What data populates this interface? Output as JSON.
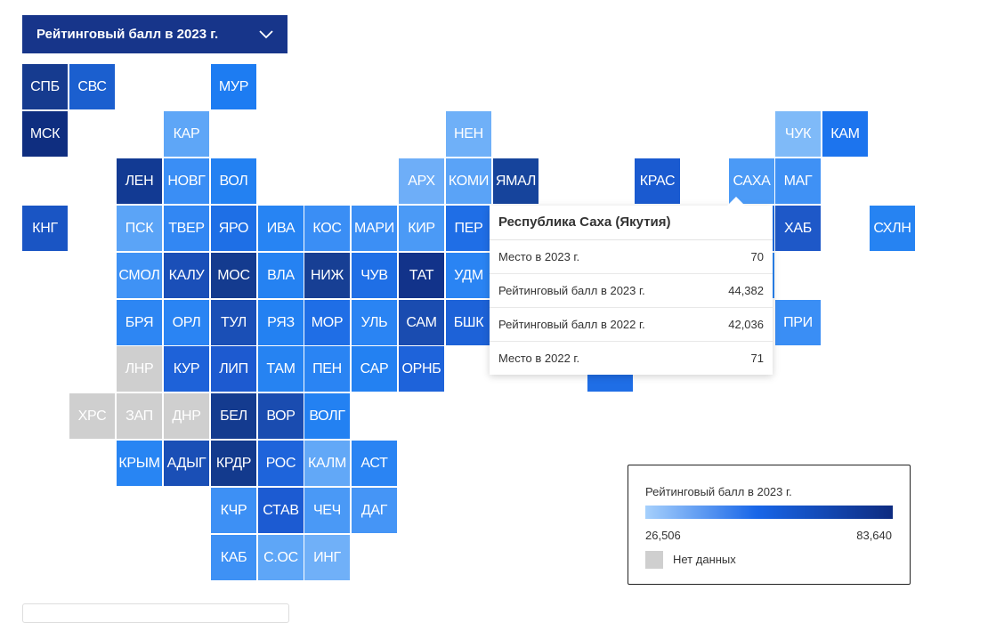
{
  "filter": {
    "selected": "Рейтинговый балл в 2023 г."
  },
  "colors": {
    "nodata": "#cfcfcf",
    "scale_low": "#a6d0fc",
    "scale_high": "#0e2b80"
  },
  "tiles": [
    {
      "code": "СПБ",
      "color": "#163b8f"
    },
    {
      "code": "СВС",
      "color": "#1b5fcf"
    },
    {
      "code": "МУР",
      "color": "#1d7cf2"
    },
    {
      "code": "МСК",
      "color": "#0f2e80"
    },
    {
      "code": "КАР",
      "color": "#5ea6f7"
    },
    {
      "code": "НЕН",
      "color": "#6fb0f8"
    },
    {
      "code": "ЧУК",
      "color": "#7fbaf8"
    },
    {
      "code": "КАМ",
      "color": "#1c74ee"
    },
    {
      "code": "ЛЕН",
      "color": "#123a93"
    },
    {
      "code": "НОВГ",
      "color": "#3a8ef5"
    },
    {
      "code": "ВОЛ",
      "color": "#2381f2"
    },
    {
      "code": "АРХ",
      "color": "#6eaef8"
    },
    {
      "code": "КОМИ",
      "color": "#5aa3f7"
    },
    {
      "code": "ЯМАЛ",
      "color": "#16449c"
    },
    {
      "code": "КРАС",
      "color": "#1a5ad0"
    },
    {
      "code": "САХА",
      "color": "#4b9af6"
    },
    {
      "code": "МАГ",
      "color": "#3f91f5"
    },
    {
      "code": "КНГ",
      "color": "#1a55c4"
    },
    {
      "code": "ПСК",
      "color": "#5ba4f7"
    },
    {
      "code": "ТВЕР",
      "color": "#3287f3"
    },
    {
      "code": "ЯРО",
      "color": "#1e6fe6"
    },
    {
      "code": "ИВА",
      "color": "#2784f3"
    },
    {
      "code": "КОС",
      "color": "#3a8ef5"
    },
    {
      "code": "МАРИ",
      "color": "#3c8ff5"
    },
    {
      "code": "КИР",
      "color": "#4b9af6"
    },
    {
      "code": "ПЕР",
      "color": "#1f6ee6"
    },
    {
      "code": "ХАБ",
      "color": "#1e58c8"
    },
    {
      "code": "СХЛН",
      "color": "#2683f2"
    },
    {
      "code": "СМОЛ",
      "color": "#3f92f5"
    },
    {
      "code": "КАЛУ",
      "color": "#1a4fb8"
    },
    {
      "code": "МОС",
      "color": "#143b8f"
    },
    {
      "code": "ВЛА",
      "color": "#2582f2"
    },
    {
      "code": "НИЖ",
      "color": "#173f94"
    },
    {
      "code": "ЧУВ",
      "color": "#1f6fe6"
    },
    {
      "code": "ТАТ",
      "color": "#12338a"
    },
    {
      "code": "УДМ",
      "color": "#2a84f3"
    },
    {
      "code": "БРЯ",
      "color": "#2d86f3"
    },
    {
      "code": "ОРЛ",
      "color": "#2a84f3"
    },
    {
      "code": "ТУЛ",
      "color": "#1a4fb6"
    },
    {
      "code": "РЯЗ",
      "color": "#2381f2"
    },
    {
      "code": "МОР",
      "color": "#1f6ee6"
    },
    {
      "code": "УЛЬ",
      "color": "#2a84f3"
    },
    {
      "code": "САМ",
      "color": "#1a4cb0"
    },
    {
      "code": "БШК",
      "color": "#1d62d8"
    },
    {
      "code": "ПРИ",
      "color": "#3a8ef5"
    },
    {
      "code": "ЛНР",
      "color": "#cfcfcf",
      "nodata": true
    },
    {
      "code": "КУР",
      "color": "#1e62d9"
    },
    {
      "code": "ЛИП",
      "color": "#1d5ad0"
    },
    {
      "code": "ТАМ",
      "color": "#2683f2"
    },
    {
      "code": "ПЕН",
      "color": "#2a84f3"
    },
    {
      "code": "САР",
      "color": "#2381f2"
    },
    {
      "code": "ОРНБ",
      "color": "#1e63da"
    },
    {
      "code": "ХРС",
      "color": "#cfcfcf",
      "nodata": true
    },
    {
      "code": "ЗАП",
      "color": "#cfcfcf",
      "nodata": true
    },
    {
      "code": "ДНР",
      "color": "#cfcfcf",
      "nodata": true
    },
    {
      "code": "БЕЛ",
      "color": "#143b8f"
    },
    {
      "code": "ВОР",
      "color": "#1a4cb0"
    },
    {
      "code": "ВОЛГ",
      "color": "#2381f2"
    },
    {
      "code": "КРЫМ",
      "color": "#2885f3"
    },
    {
      "code": "АДЫГ",
      "color": "#1a4fb6"
    },
    {
      "code": "КРДР",
      "color": "#133a8d"
    },
    {
      "code": "РОС",
      "color": "#1e64db"
    },
    {
      "code": "КАЛМ",
      "color": "#62a8f7"
    },
    {
      "code": "АСТ",
      "color": "#2a84f3"
    },
    {
      "code": "КЧР",
      "color": "#3d90f5"
    },
    {
      "code": "СТАВ",
      "color": "#1c5bd2"
    },
    {
      "code": "ЧЕЧ",
      "color": "#4a99f6"
    },
    {
      "code": "ДАГ",
      "color": "#4595f6"
    },
    {
      "code": "КАБ",
      "color": "#3e91f5"
    },
    {
      "code": "С.ОС",
      "color": "#5ea6f7"
    },
    {
      "code": "ИНГ",
      "color": "#70b0f8"
    }
  ],
  "tooltip": {
    "title": "Республика Саха (Якутия)",
    "rows": [
      {
        "label": "Место в 2023 г.",
        "value": "70"
      },
      {
        "label": "Рейтинговый балл в 2023 г.",
        "value": "44,382"
      },
      {
        "label": "Рейтинговый балл в 2022 г.",
        "value": "42,036"
      },
      {
        "label": "Место в 2022 г.",
        "value": "71"
      }
    ]
  },
  "legend": {
    "title": "Рейтинговый балл в 2023 г.",
    "min": "26,506",
    "max": "83,640",
    "nodata_label": "Нет данных"
  }
}
